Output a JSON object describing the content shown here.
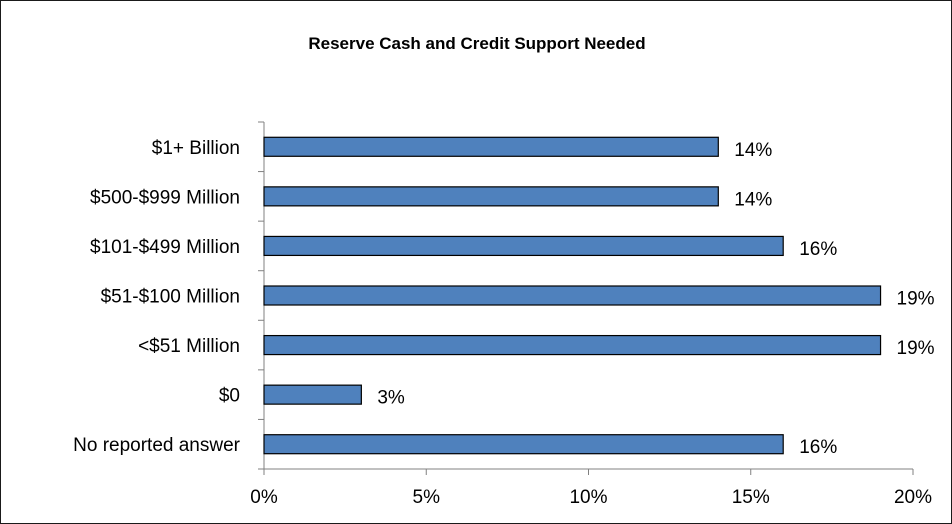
{
  "chart_data": {
    "type": "bar",
    "orientation": "horizontal",
    "title": "Reserve Cash and Credit Support Needed",
    "xlabel": "",
    "ylabel": "",
    "categories": [
      "$1+ Billion",
      "$500-$999 Million",
      "$101-$499 Million",
      "$51-$100 Million",
      "<$51 Million",
      "$0",
      "No reported answer"
    ],
    "values": [
      14,
      14,
      16,
      19,
      19,
      3,
      16
    ],
    "value_labels": [
      "14%",
      "14%",
      "16%",
      "19%",
      "19%",
      "3%",
      "16%"
    ],
    "xlim": [
      0,
      20
    ],
    "xticks": [
      0,
      5,
      10,
      15,
      20
    ],
    "xtick_labels": [
      "0%",
      "5%",
      "10%",
      "15%",
      "20%"
    ],
    "grid": false,
    "legend": "none",
    "colors": {
      "bar_fill": "#4f81bd",
      "bar_stroke": "#000000",
      "axis": "#808080"
    }
  }
}
